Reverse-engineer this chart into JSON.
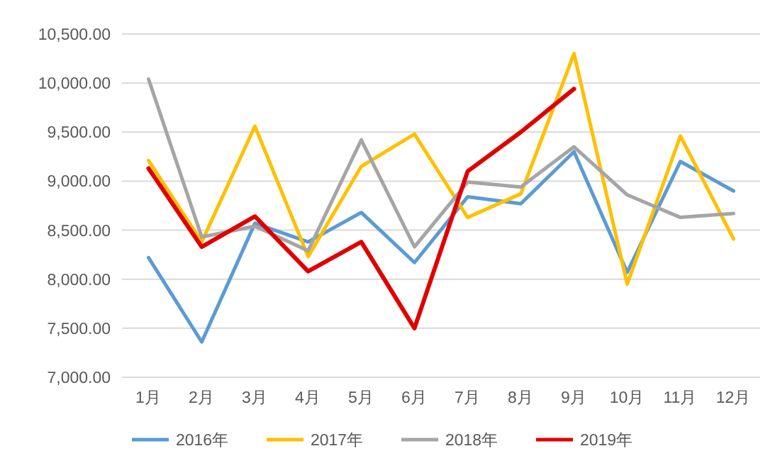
{
  "chart_data": {
    "type": "line",
    "categories": [
      "1月",
      "2月",
      "3月",
      "4月",
      "5月",
      "6月",
      "7月",
      "8月",
      "9月",
      "10月",
      "11月",
      "12月"
    ],
    "series": [
      {
        "name": "2016年",
        "color": "#5b9bd5",
        "values": [
          8220,
          7360,
          8570,
          8380,
          8680,
          8170,
          8840,
          8770,
          9300,
          8070,
          9200,
          8900
        ]
      },
      {
        "name": "2017年",
        "color": "#ffc000",
        "values": [
          9210,
          8380,
          9560,
          8230,
          9150,
          9480,
          8630,
          8870,
          10300,
          7950,
          9460,
          8410
        ]
      },
      {
        "name": "2018年",
        "color": "#a5a5a5",
        "values": [
          10040,
          8430,
          8540,
          8290,
          9420,
          8330,
          8990,
          8940,
          9350,
          8860,
          8630,
          8670
        ]
      },
      {
        "name": "2019年",
        "color": "#e00000",
        "values": [
          9130,
          8330,
          8640,
          8080,
          8380,
          7500,
          9100,
          9500,
          9940,
          null,
          null,
          null
        ]
      }
    ],
    "ylim": [
      7000,
      10500
    ],
    "yticks": [
      {
        "value": 7000,
        "label": "7,000.00"
      },
      {
        "value": 7500,
        "label": "7,500.00"
      },
      {
        "value": 8000,
        "label": "8,000.00"
      },
      {
        "value": 8500,
        "label": "8,500.00"
      },
      {
        "value": 9000,
        "label": "9,000.00"
      },
      {
        "value": 9500,
        "label": "9,500.00"
      },
      {
        "value": 10000,
        "label": "10,000.00"
      },
      {
        "value": 10500,
        "label": "10,500.00"
      }
    ],
    "grid": "y",
    "legend": "bottom",
    "marker": "none",
    "line_style": "solid"
  }
}
